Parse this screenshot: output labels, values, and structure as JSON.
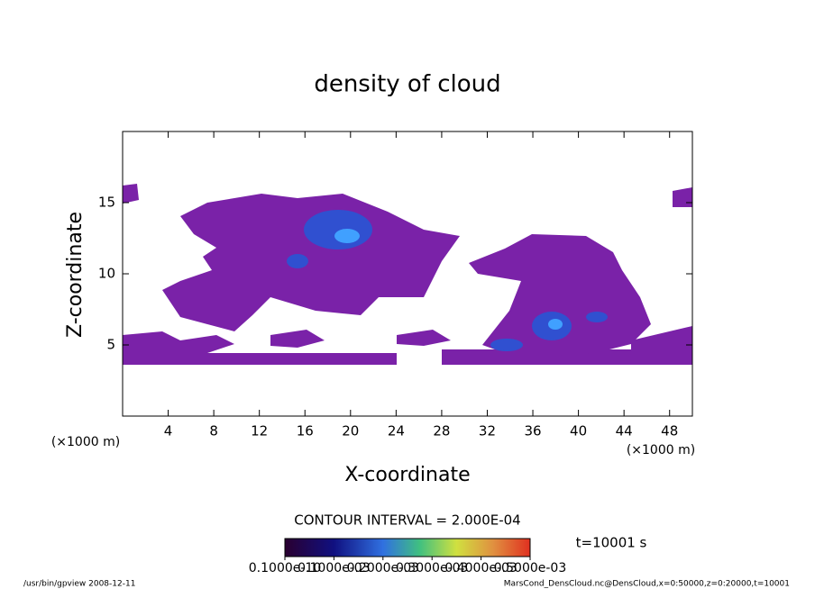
{
  "chart_data": {
    "type": "contour",
    "title": "density of cloud",
    "x_label": "X-coordinate",
    "y_label": "Z-coordinate",
    "x_unit": "(×1000 m)",
    "y_unit": "(×1000 m)",
    "xlim": [
      0,
      50
    ],
    "ylim": [
      0,
      20
    ],
    "xticks": [
      4,
      8,
      12,
      16,
      20,
      24,
      28,
      32,
      36,
      40,
      44,
      48
    ],
    "yticks": [
      5,
      10,
      15
    ],
    "contour_interval": "CONTOUR INTERVAL = 2.000E-04",
    "time_label": "t=10001 s",
    "colorbar_ticks": [
      {
        "value": 1e-11,
        "label": "0.1000e-10"
      },
      {
        "value": 0.0001,
        "label": "0.1000e-03"
      },
      {
        "value": 0.0002,
        "label": "0.2000e-03"
      },
      {
        "value": 0.0003,
        "label": "0.3000e-03"
      },
      {
        "value": 0.0004,
        "label": "0.4000e-03"
      },
      {
        "value": 0.0005,
        "label": "0.5000e-03"
      }
    ],
    "footer_left": "/usr/bin/gpview  2008-12-11",
    "footer_right": "MarsCond_DensCloud.nc@DensCloud,x=0:50000,z=0:20000,t=10001"
  }
}
